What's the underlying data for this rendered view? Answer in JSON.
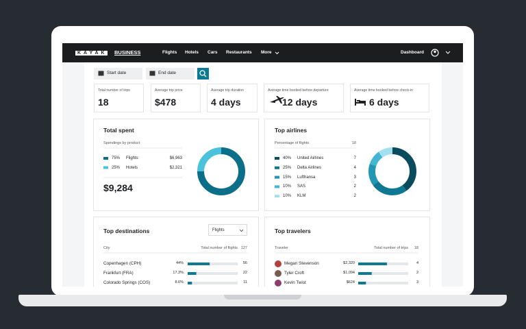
{
  "nav": {
    "logo": "KAYAK",
    "logo_suffix": "BUSINESS",
    "links": [
      "Flights",
      "Hotels",
      "Cars",
      "Restaurants",
      "More"
    ],
    "dashboard": "Dashboard"
  },
  "filters": {
    "start": "Start date",
    "end": "End date"
  },
  "stats": [
    {
      "label": "Total number of trips",
      "value": "18"
    },
    {
      "label": "Average trip price",
      "value": "$478"
    },
    {
      "label": "Average trip duration",
      "value": "4 days"
    },
    {
      "label": "Average time booked before departure",
      "value": "12 days"
    },
    {
      "label": "Average time booked before check-in",
      "value": "6 days"
    }
  ],
  "total_spent": {
    "title": "Total spent",
    "subtitle": "Spendings by product",
    "total": "$9,284",
    "items": [
      {
        "name": "Flights",
        "percent": 75,
        "percent_label": "75%",
        "amount": 6963,
        "amount_label": "$6,963",
        "color": "#0b6f89"
      },
      {
        "name": "Hotels",
        "percent": 25,
        "percent_label": "25%",
        "amount": 2321,
        "amount_label": "$2,321",
        "color": "#4ac2dc"
      }
    ]
  },
  "top_airlines": {
    "title": "Top airlines",
    "subtitle": "Percentage of flights",
    "total": 18,
    "items": [
      {
        "name": "United Airlines",
        "percent": 40,
        "percent_label": "40%",
        "count": 7,
        "color": "#0a4b5d"
      },
      {
        "name": "Delta Airlines",
        "percent": 25,
        "percent_label": "25%",
        "count": 4,
        "color": "#0e7793"
      },
      {
        "name": "Lufthansa",
        "percent": 15,
        "percent_label": "15%",
        "count": 3,
        "color": "#2197b3"
      },
      {
        "name": "SAS",
        "percent": 10,
        "percent_label": "10%",
        "count": 2,
        "color": "#43b6d1"
      },
      {
        "name": "KLM",
        "percent": 10,
        "percent_label": "10%",
        "count": 2,
        "color": "#a3e0ed"
      }
    ]
  },
  "top_destinations": {
    "title": "Top destinations",
    "filter": "Flights",
    "column_city": "City",
    "column_count": "Total number of flights",
    "total": 127,
    "rows": [
      {
        "city": "Copenhagen (CPH)",
        "percent": 44,
        "percent_label": "44%",
        "count": 56
      },
      {
        "city": "Frankfurt (FRA)",
        "percent": 17.3,
        "percent_label": "17.3%",
        "count": 22
      },
      {
        "city": "Colorado Springs (COS)",
        "percent": 8.6,
        "percent_label": "8.6%",
        "count": 11
      }
    ]
  },
  "top_travelers": {
    "title": "Top travelers",
    "column_traveler": "Traveler",
    "column_count": "Total number of trips",
    "total": 18,
    "rows": [
      {
        "name": "Megan Stevenson",
        "amount": 2320,
        "amount_label": "$2,320",
        "trips": 4
      },
      {
        "name": "Tyler Croft",
        "amount": 1094,
        "amount_label": "$1,094",
        "trips": 2
      },
      {
        "name": "Kevin Twist",
        "amount": 624,
        "amount_label": "$624",
        "trips": 3
      }
    ]
  }
}
